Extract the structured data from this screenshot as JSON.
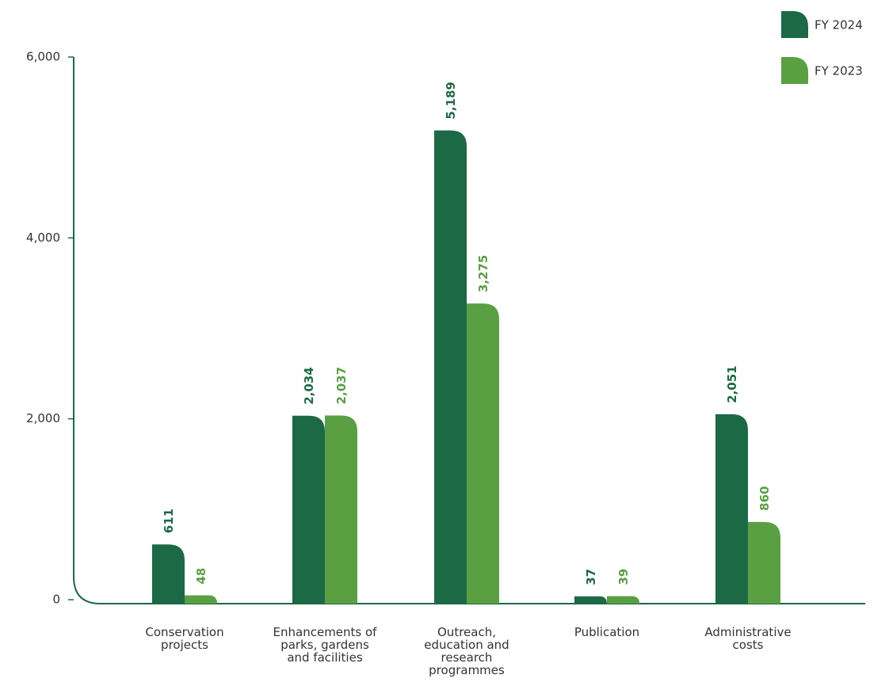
{
  "chart_data": {
    "type": "bar",
    "categories": [
      "Conservation projects",
      "Enhancements of parks, gardens and facilities",
      "Outreach, education and research programmes",
      "Publication",
      "Administrative costs"
    ],
    "series": [
      {
        "name": "FY 2024",
        "color": "#1b6a45",
        "values": [
          611,
          2034,
          5189,
          37,
          2051
        ],
        "value_labels": [
          "611",
          "2,034",
          "5,189",
          "37",
          "2,051"
        ]
      },
      {
        "name": "FY 2023",
        "color": "#5aa043",
        "values": [
          48,
          2037,
          3275,
          39,
          860
        ],
        "value_labels": [
          "48",
          "2,037",
          "3,275",
          "39",
          "860"
        ]
      }
    ],
    "ylim": [
      0,
      6000
    ],
    "yticks": [
      0,
      {
        "value": 2000,
        "label": "2,000"
      },
      {
        "value": 4000,
        "label": "4,000"
      },
      {
        "value": 6000,
        "label": "6,000"
      }
    ]
  }
}
